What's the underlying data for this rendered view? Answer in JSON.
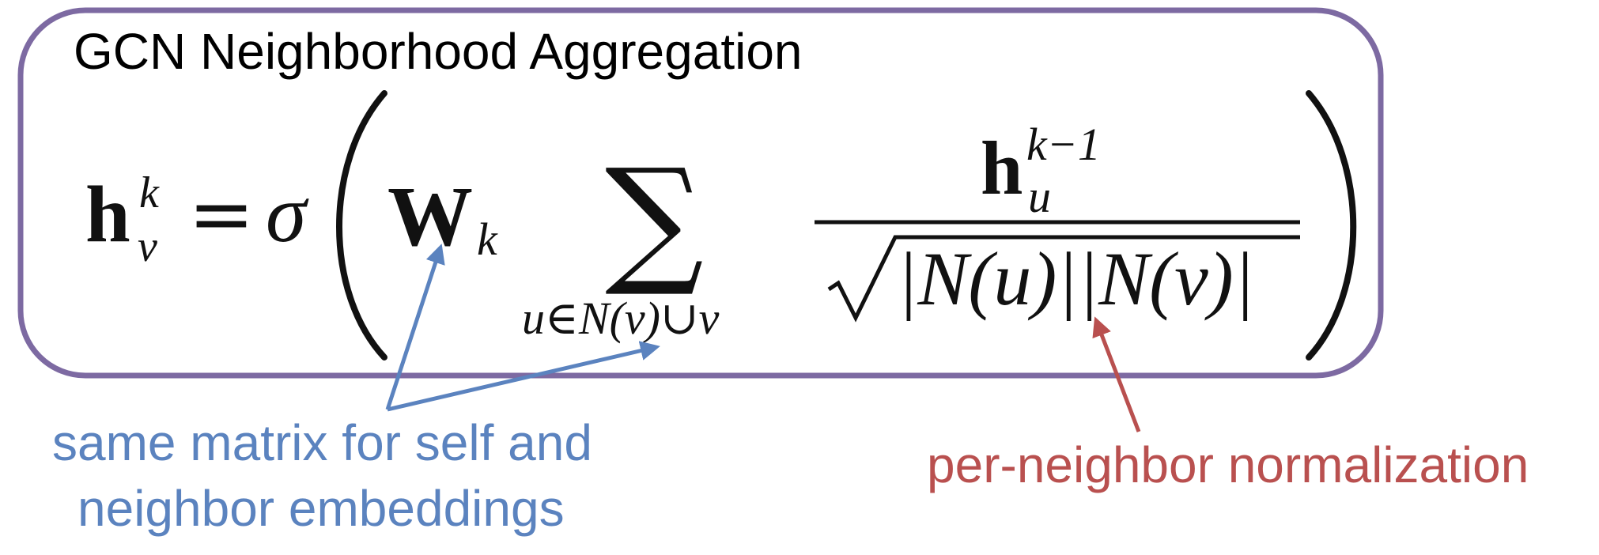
{
  "title": "GCN Neighborhood Aggregation",
  "formula": {
    "lhs_base": "h",
    "lhs_sub": "v",
    "lhs_sup": "k",
    "equals": "=",
    "sigma": "σ",
    "weight_base": "W",
    "weight_sub": "k",
    "sum_symbol": "∑",
    "sum_index": "u∈N(v)∪v",
    "numerator_base": "h",
    "numerator_sub": "u",
    "numerator_sup": "k−1",
    "denominator": "|N(u)||N(v)|"
  },
  "annotations": {
    "blue_line1": "same matrix for self and",
    "blue_line2": "neighbor embeddings",
    "red": "per-neighbor normalization"
  },
  "colors": {
    "box_border": "#7d6aa2",
    "blue": "#5b83bf",
    "red": "#b9504f",
    "ink": "#111111"
  }
}
